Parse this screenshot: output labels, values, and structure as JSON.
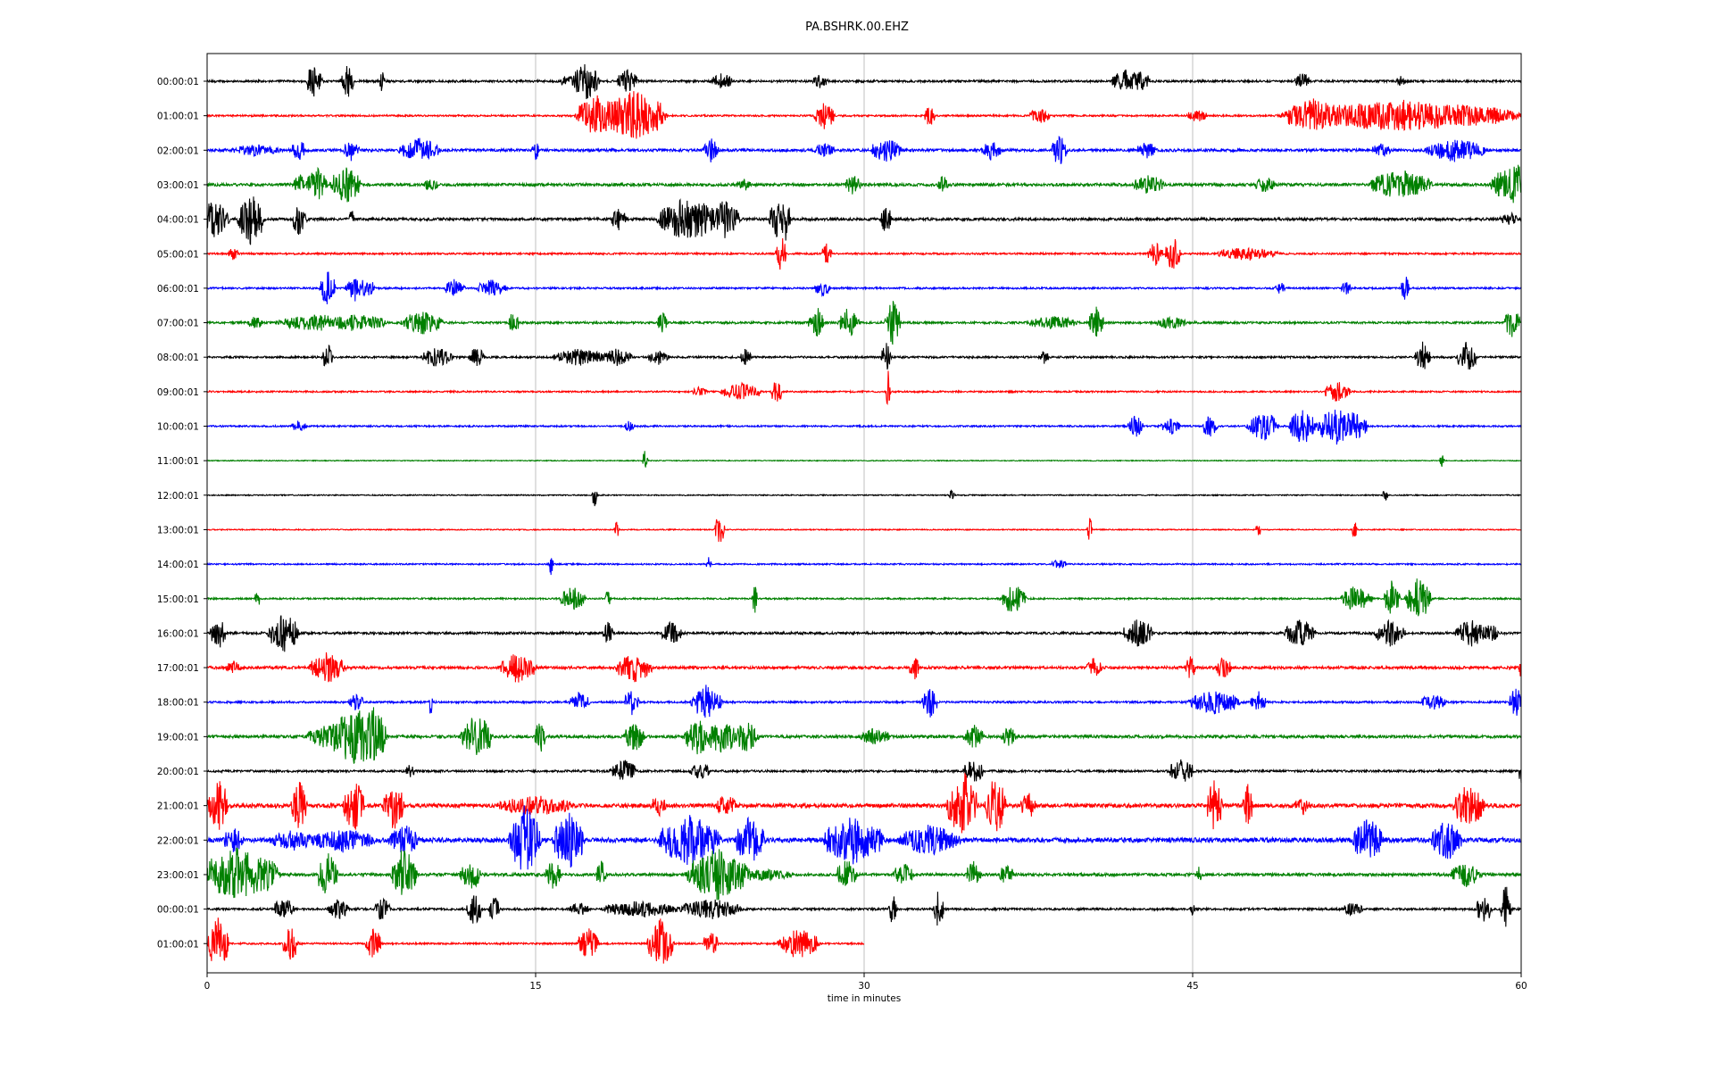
{
  "chart_data": {
    "type": "line",
    "title": "PA.BSHRK.00.EHZ",
    "xlabel": "time in minutes",
    "ylabel": "",
    "xlim": [
      0,
      60
    ],
    "x_ticks": [
      0,
      15,
      30,
      45,
      60
    ],
    "x_tick_labels": [
      "0",
      "15",
      "30",
      "45",
      "60"
    ],
    "grid": "vertical lines at each x tick",
    "colors": [
      "#000000",
      "#ff0000",
      "#0000ff",
      "#008000"
    ],
    "row_labels": [
      "00:00:01",
      "01:00:01",
      "02:00:01",
      "03:00:01",
      "04:00:01",
      "05:00:01",
      "06:00:01",
      "07:00:01",
      "08:00:01",
      "09:00:01",
      "10:00:01",
      "11:00:01",
      "12:00:01",
      "13:00:01",
      "14:00:01",
      "15:00:01",
      "16:00:01",
      "17:00:01",
      "18:00:01",
      "19:00:01",
      "20:00:01",
      "21:00:01",
      "22:00:01",
      "23:00:01",
      "00:00:01",
      "01:00:01"
    ],
    "last_row_end_minute": 30,
    "noise": [
      1.2,
      1.0,
      1.5,
      1.6,
      1.5,
      1.0,
      1.0,
      1.2,
      1.1,
      0.9,
      0.9,
      0.5,
      0.6,
      0.6,
      0.8,
      0.9,
      1.3,
      1.5,
      1.1,
      1.6,
      1.2,
      2.2,
      2.6,
      1.6,
      1.2,
      1.0
    ],
    "events": [
      [
        [
          4.9,
          0.3,
          22
        ],
        [
          6.4,
          0.25,
          20
        ],
        [
          8,
          0.1,
          18
        ],
        [
          16.5,
          0.3,
          8
        ],
        [
          17.3,
          0.5,
          22
        ],
        [
          19.2,
          0.4,
          14
        ],
        [
          23.5,
          0.4,
          10
        ],
        [
          28,
          0.3,
          8
        ],
        [
          42,
          0.6,
          14
        ],
        [
          42.6,
          0.4,
          12
        ],
        [
          50,
          0.3,
          10
        ],
        [
          54.5,
          0.2,
          6
        ]
      ],
      [
        [
          17.8,
          0.8,
          24
        ],
        [
          19.5,
          1.2,
          30
        ],
        [
          20.6,
          0.3,
          16
        ],
        [
          28.2,
          0.4,
          16
        ],
        [
          33,
          0.2,
          14
        ],
        [
          38,
          0.4,
          10
        ],
        [
          45.2,
          0.4,
          8
        ],
        [
          50.6,
          1.2,
          20
        ],
        [
          54.5,
          4.5,
          18
        ]
      ],
      [
        [
          2.2,
          1.0,
          7
        ],
        [
          4.2,
          0.3,
          12
        ],
        [
          6.6,
          0.3,
          14
        ],
        [
          9.7,
          0.8,
          14
        ],
        [
          15,
          0.15,
          12
        ],
        [
          23,
          0.3,
          14
        ],
        [
          28.2,
          0.4,
          10
        ],
        [
          31,
          0.6,
          14
        ],
        [
          35.8,
          0.4,
          12
        ],
        [
          38.9,
          0.3,
          18
        ],
        [
          42.9,
          0.4,
          10
        ],
        [
          53.6,
          0.4,
          8
        ],
        [
          57,
          1.2,
          14
        ]
      ],
      [
        [
          4.2,
          0.2,
          14
        ],
        [
          5,
          0.4,
          20
        ],
        [
          6.3,
          0.6,
          22
        ],
        [
          10.2,
          0.3,
          8
        ],
        [
          24.5,
          0.3,
          8
        ],
        [
          29.5,
          0.3,
          12
        ],
        [
          33.6,
          0.2,
          12
        ],
        [
          43,
          0.6,
          12
        ],
        [
          48.3,
          0.4,
          10
        ],
        [
          54.5,
          1.2,
          18
        ],
        [
          59.8,
          1.0,
          24
        ]
      ],
      [
        [
          0.3,
          0.6,
          22
        ],
        [
          2,
          0.5,
          30
        ],
        [
          4.2,
          0.3,
          18
        ],
        [
          6.6,
          0.1,
          14
        ],
        [
          18.8,
          0.3,
          14
        ],
        [
          22,
          1.2,
          26
        ],
        [
          23.6,
          0.6,
          22
        ],
        [
          26,
          0.3,
          22
        ],
        [
          26.4,
          0.2,
          26
        ],
        [
          31,
          0.2,
          18
        ],
        [
          59.5,
          0.4,
          8
        ]
      ],
      [
        [
          1.2,
          0.2,
          8
        ],
        [
          26.2,
          0.2,
          22
        ],
        [
          28.3,
          0.2,
          12
        ],
        [
          43.3,
          0.3,
          14
        ],
        [
          44.1,
          0.3,
          20
        ],
        [
          47.5,
          1.2,
          8
        ]
      ],
      [
        [
          5.5,
          0.3,
          20
        ],
        [
          6.8,
          0.4,
          16
        ],
        [
          7.4,
          0.2,
          12
        ],
        [
          11.3,
          0.4,
          12
        ],
        [
          13,
          0.6,
          10
        ],
        [
          28.1,
          0.3,
          10
        ],
        [
          49,
          0.2,
          8
        ],
        [
          52,
          0.2,
          8
        ],
        [
          54.7,
          0.15,
          16
        ]
      ],
      [
        [
          2.2,
          0.3,
          8
        ],
        [
          5,
          1.5,
          10
        ],
        [
          6.8,
          1.2,
          10
        ],
        [
          9.8,
          0.8,
          14
        ],
        [
          14,
          0.2,
          14
        ],
        [
          20.8,
          0.2,
          12
        ],
        [
          27.8,
          0.3,
          20
        ],
        [
          29.3,
          0.4,
          18
        ],
        [
          31.3,
          0.3,
          26
        ],
        [
          38.6,
          1.0,
          8
        ],
        [
          40.6,
          0.3,
          18
        ],
        [
          44,
          0.6,
          8
        ],
        [
          59.6,
          0.3,
          18
        ]
      ],
      [
        [
          5.5,
          0.2,
          16
        ],
        [
          10.5,
          0.6,
          12
        ],
        [
          12.3,
          0.3,
          12
        ],
        [
          17,
          1.0,
          10
        ],
        [
          18.7,
          0.6,
          10
        ],
        [
          20.6,
          0.4,
          10
        ],
        [
          24.6,
          0.2,
          12
        ],
        [
          31,
          0.2,
          18
        ],
        [
          38.2,
          0.2,
          8
        ],
        [
          55.5,
          0.3,
          18
        ],
        [
          57.5,
          0.4,
          18
        ]
      ],
      [
        [
          22.5,
          0.3,
          6
        ],
        [
          24.4,
          0.8,
          10
        ],
        [
          26,
          0.2,
          16
        ],
        [
          31.1,
          0.1,
          26
        ],
        [
          51.6,
          0.5,
          12
        ]
      ],
      [
        [
          4.2,
          0.3,
          8
        ],
        [
          19.3,
          0.2,
          8
        ],
        [
          42.4,
          0.3,
          14
        ],
        [
          44,
          0.4,
          10
        ],
        [
          45.8,
          0.3,
          14
        ],
        [
          48.2,
          0.6,
          18
        ],
        [
          50,
          0.5,
          22
        ],
        [
          51.6,
          0.8,
          22
        ],
        [
          52.4,
          0.5,
          18
        ]
      ],
      [
        [
          20,
          0.1,
          14
        ],
        [
          56.4,
          0.1,
          8
        ]
      ],
      [
        [
          17.7,
          0.1,
          14
        ],
        [
          34,
          0.1,
          8
        ],
        [
          53.8,
          0.1,
          8
        ]
      ],
      [
        [
          18.7,
          0.1,
          12
        ],
        [
          23.4,
          0.2,
          18
        ],
        [
          40.3,
          0.1,
          16
        ],
        [
          48,
          0.1,
          8
        ],
        [
          52.4,
          0.1,
          12
        ]
      ],
      [
        [
          15.7,
          0.1,
          12
        ],
        [
          22.9,
          0.1,
          8
        ],
        [
          38.9,
          0.3,
          6
        ]
      ],
      [
        [
          2.3,
          0.1,
          16
        ],
        [
          16.7,
          0.5,
          14
        ],
        [
          18.3,
          0.1,
          12
        ],
        [
          25,
          0.1,
          18
        ],
        [
          36.8,
          0.5,
          18
        ],
        [
          52.5,
          0.6,
          16
        ],
        [
          54.1,
          0.3,
          22
        ],
        [
          55.3,
          0.5,
          26
        ]
      ],
      [
        [
          0.5,
          0.3,
          20
        ],
        [
          3.5,
          0.6,
          24
        ],
        [
          18.3,
          0.2,
          14
        ],
        [
          21.2,
          0.4,
          14
        ],
        [
          42.5,
          0.6,
          16
        ],
        [
          49.9,
          0.6,
          16
        ],
        [
          54,
          0.6,
          16
        ],
        [
          57.7,
          0.6,
          16
        ],
        [
          58.6,
          0.3,
          12
        ]
      ],
      [
        [
          1.2,
          0.3,
          8
        ],
        [
          5.5,
          0.7,
          18
        ],
        [
          14.2,
          0.7,
          18
        ],
        [
          19.5,
          0.7,
          18
        ],
        [
          32.3,
          0.2,
          16
        ],
        [
          40.5,
          0.3,
          12
        ],
        [
          44.9,
          0.2,
          14
        ],
        [
          46.4,
          0.3,
          14
        ],
        [
          60,
          0.1,
          16
        ]
      ],
      [
        [
          6.8,
          0.3,
          10
        ],
        [
          10.2,
          0.1,
          16
        ],
        [
          17,
          0.4,
          12
        ],
        [
          19.4,
          0.3,
          16
        ],
        [
          22.8,
          0.6,
          20
        ],
        [
          33,
          0.3,
          18
        ],
        [
          46,
          1.0,
          14
        ],
        [
          48,
          0.3,
          14
        ],
        [
          56,
          0.5,
          10
        ],
        [
          59.8,
          0.3,
          18
        ]
      ],
      [
        [
          5.5,
          0.8,
          14
        ],
        [
          6.8,
          1.0,
          34
        ],
        [
          7.6,
          0.5,
          34
        ],
        [
          12.3,
          0.6,
          26
        ],
        [
          15.2,
          0.2,
          20
        ],
        [
          19.5,
          0.4,
          18
        ],
        [
          22.5,
          0.6,
          22
        ],
        [
          23.5,
          0.6,
          22
        ],
        [
          24.6,
          0.5,
          18
        ],
        [
          30.5,
          0.6,
          10
        ],
        [
          35,
          0.4,
          14
        ],
        [
          36.6,
          0.3,
          12
        ]
      ],
      [
        [
          9.3,
          0.2,
          10
        ],
        [
          19,
          0.5,
          14
        ],
        [
          22.5,
          0.4,
          10
        ],
        [
          35,
          0.4,
          14
        ],
        [
          44.5,
          0.5,
          14
        ],
        [
          60,
          0.1,
          16
        ]
      ],
      [
        [
          0.5,
          0.4,
          32
        ],
        [
          4.2,
          0.3,
          30
        ],
        [
          6.7,
          0.4,
          32
        ],
        [
          8.5,
          0.4,
          30
        ],
        [
          15,
          1.5,
          12
        ],
        [
          20.6,
          0.3,
          14
        ],
        [
          23.7,
          0.4,
          14
        ],
        [
          34.5,
          0.6,
          40
        ],
        [
          36,
          0.4,
          36
        ],
        [
          37.5,
          0.3,
          16
        ],
        [
          46,
          0.3,
          32
        ],
        [
          47.5,
          0.2,
          26
        ],
        [
          50,
          0.3,
          12
        ],
        [
          57.6,
          0.6,
          26
        ]
      ],
      [
        [
          1.2,
          0.4,
          16
        ],
        [
          4,
          1.0,
          12
        ],
        [
          6.2,
          1.3,
          14
        ],
        [
          9,
          0.6,
          18
        ],
        [
          14.5,
          0.6,
          40
        ],
        [
          16.5,
          0.6,
          34
        ],
        [
          22,
          1.2,
          30
        ],
        [
          24.8,
          0.6,
          28
        ],
        [
          29.5,
          1.2,
          28
        ],
        [
          33,
          1.2,
          18
        ],
        [
          53,
          0.6,
          26
        ],
        [
          56.6,
          0.6,
          24
        ]
      ],
      [
        [
          1.5,
          1.5,
          32
        ],
        [
          5.5,
          0.4,
          26
        ],
        [
          9,
          0.5,
          32
        ],
        [
          12,
          0.4,
          20
        ],
        [
          15.8,
          0.3,
          18
        ],
        [
          18,
          0.2,
          16
        ],
        [
          23.3,
          1.2,
          30
        ],
        [
          25,
          1.5,
          8
        ],
        [
          29.2,
          0.4,
          18
        ],
        [
          31.8,
          0.4,
          14
        ],
        [
          35,
          0.3,
          16
        ],
        [
          36.5,
          0.3,
          12
        ],
        [
          45.3,
          0.1,
          12
        ],
        [
          57.5,
          0.6,
          14
        ]
      ],
      [
        [
          3.5,
          0.4,
          14
        ],
        [
          6,
          0.4,
          12
        ],
        [
          8,
          0.3,
          14
        ],
        [
          12.2,
          0.3,
          18
        ],
        [
          13.1,
          0.2,
          16
        ],
        [
          17,
          0.4,
          8
        ],
        [
          19.8,
          1.5,
          10
        ],
        [
          23,
          1.2,
          12
        ],
        [
          31.3,
          0.15,
          22
        ],
        [
          33.4,
          0.2,
          22
        ],
        [
          45,
          0.1,
          8
        ],
        [
          52.3,
          0.4,
          8
        ],
        [
          58.3,
          0.3,
          18
        ],
        [
          59.3,
          0.2,
          30
        ]
      ],
      [
        [
          0.5,
          0.4,
          32
        ],
        [
          3.8,
          0.3,
          22
        ],
        [
          7.6,
          0.3,
          20
        ],
        [
          17.4,
          0.4,
          18
        ],
        [
          20.7,
          0.5,
          28
        ],
        [
          23,
          0.3,
          14
        ],
        [
          27,
          0.8,
          18
        ]
      ]
    ]
  }
}
